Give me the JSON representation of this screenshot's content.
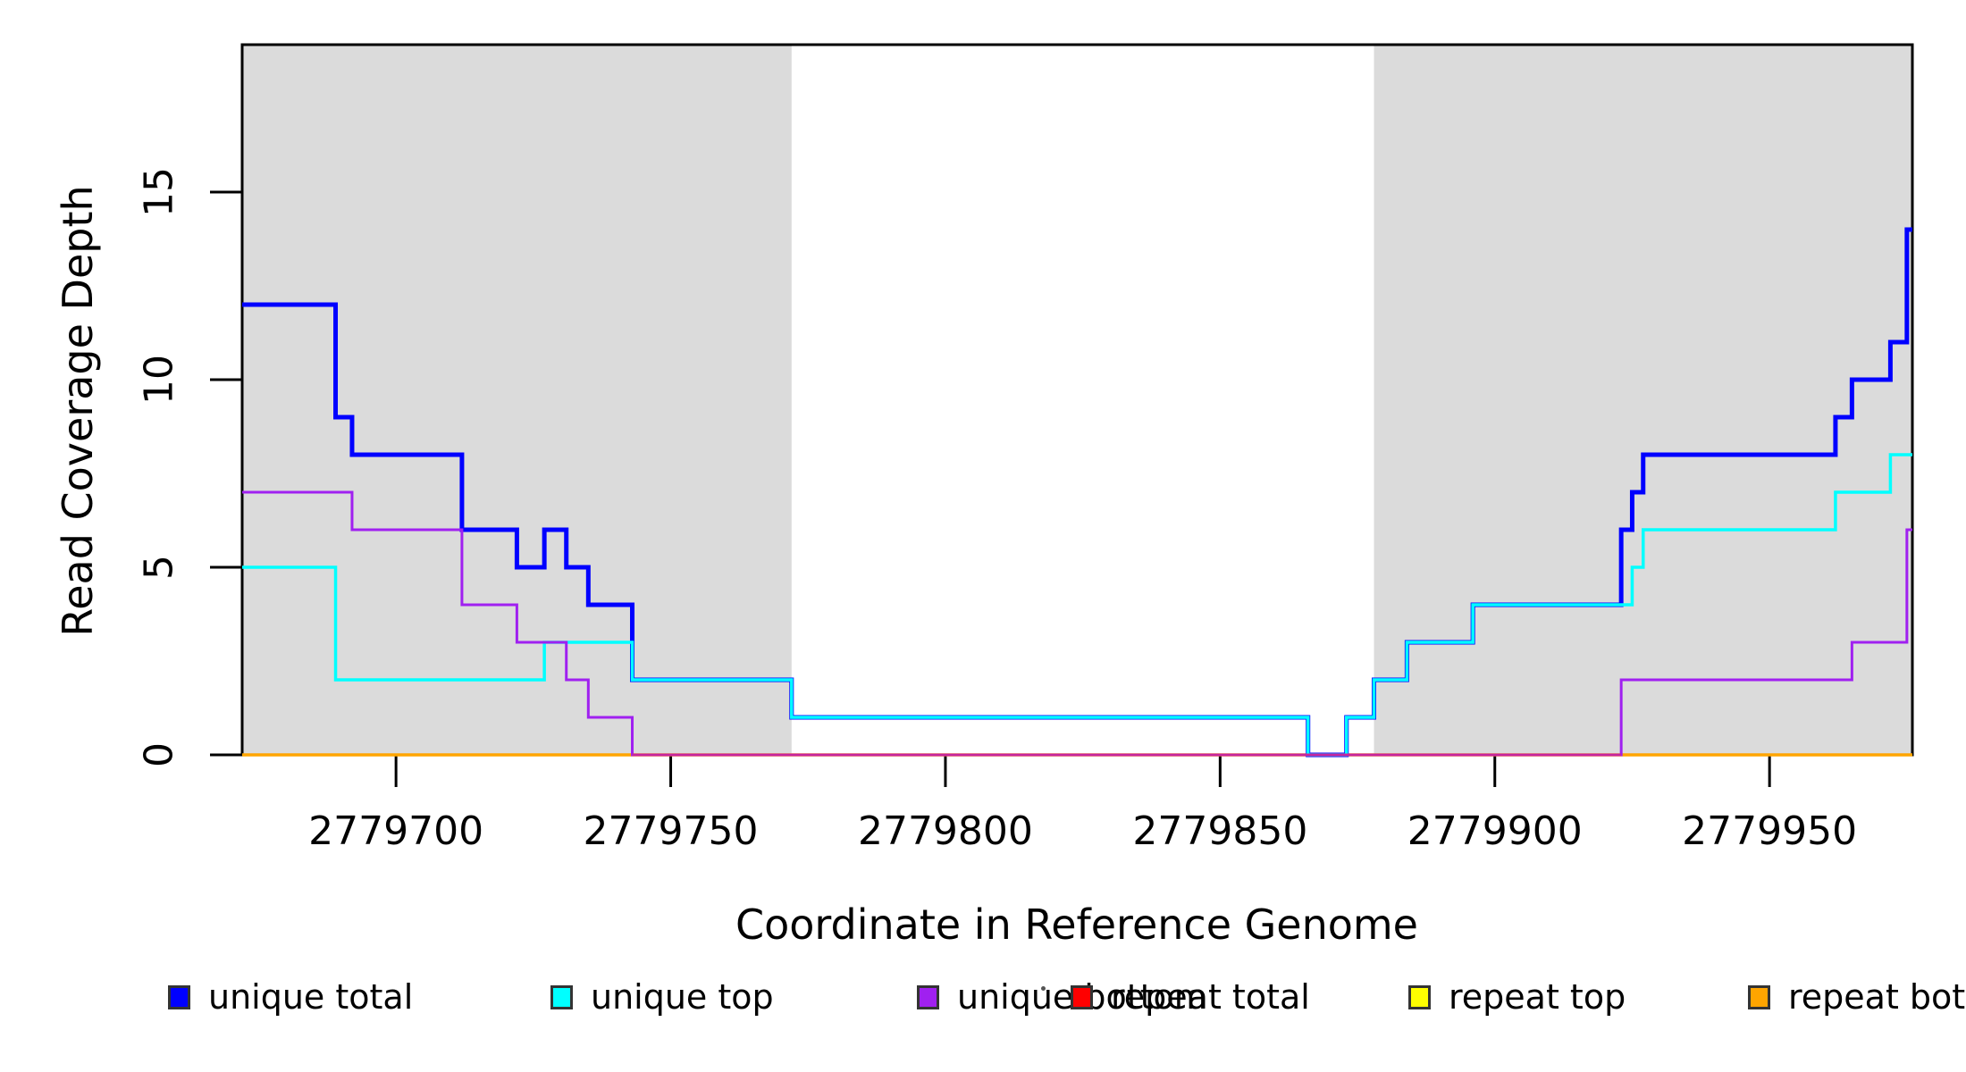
{
  "figure": {
    "background": "#ffffff",
    "plot_background": "#ffffff"
  },
  "chart_data": {
    "type": "line",
    "subtype": "step-coverage-plot",
    "title": "",
    "xlabel": "Coordinate in Reference Genome",
    "ylabel": "Read Coverage Depth",
    "xlim": [
      2779672,
      2779976
    ],
    "ylim": [
      0,
      18.93
    ],
    "x_ticks": [
      2779700,
      2779750,
      2779800,
      2779850,
      2779900,
      2779950
    ],
    "y_ticks": [
      0,
      5,
      10,
      15
    ],
    "grid": false,
    "legend_position": "bottom-horizontal",
    "shaded_region_color": "#DBDBDB",
    "shaded_regions": [
      {
        "x1": 2779672,
        "x2": 2779772
      },
      {
        "x1": 2779878,
        "x2": 2779976
      }
    ],
    "series": [
      {
        "name": "repeat total",
        "color": "#FF0000",
        "line_width": 3,
        "start_value": 0,
        "steps": []
      },
      {
        "name": "repeat top",
        "color": "#FFFF00",
        "line_width": 3,
        "start_value": 0,
        "steps": []
      },
      {
        "name": "repeat bottom",
        "color": "#FFA500",
        "line_width": 3.5,
        "start_value": 0,
        "steps": []
      },
      {
        "name": "unique total",
        "color": "#0000FF",
        "line_width": 5,
        "start_value": 12,
        "steps": [
          [
            2779689,
            9
          ],
          [
            2779692,
            8
          ],
          [
            2779712,
            6
          ],
          [
            2779722,
            5
          ],
          [
            2779727,
            6
          ],
          [
            2779731,
            5
          ],
          [
            2779735,
            4
          ],
          [
            2779743,
            2
          ],
          [
            2779772,
            1
          ],
          [
            2779866,
            0
          ],
          [
            2779873,
            1
          ],
          [
            2779878,
            2
          ],
          [
            2779884,
            3
          ],
          [
            2779896,
            4
          ],
          [
            2779923,
            6
          ],
          [
            2779925,
            7
          ],
          [
            2779927,
            8
          ],
          [
            2779962,
            9
          ],
          [
            2779965,
            10
          ],
          [
            2779972,
            11
          ],
          [
            2779975,
            14
          ]
        ]
      },
      {
        "name": "unique top",
        "color": "#00FFFF",
        "line_width": 3.5,
        "start_value": 5,
        "steps": [
          [
            2779689,
            2
          ],
          [
            2779727,
            3
          ],
          [
            2779743,
            2
          ],
          [
            2779772,
            1
          ],
          [
            2779866,
            0
          ],
          [
            2779873,
            1
          ],
          [
            2779878,
            2
          ],
          [
            2779884,
            3
          ],
          [
            2779896,
            4
          ],
          [
            2779925,
            5
          ],
          [
            2779927,
            6
          ],
          [
            2779962,
            7
          ],
          [
            2779972,
            8
          ]
        ]
      },
      {
        "name": "unique bottom",
        "color": "#A020F0",
        "line_width": 3,
        "start_value": 7,
        "steps": [
          [
            2779692,
            6
          ],
          [
            2779712,
            4
          ],
          [
            2779722,
            3
          ],
          [
            2779731,
            2
          ],
          [
            2779735,
            1
          ],
          [
            2779743,
            0
          ],
          [
            2779923,
            2
          ],
          [
            2779965,
            3
          ],
          [
            2779975,
            6
          ]
        ]
      }
    ],
    "baseline_overlays": [
      {
        "x1": 2779743,
        "x2": 2779923,
        "value": 0,
        "color": "#C7259E",
        "line_width": 3
      }
    ]
  },
  "legend": {
    "items": [
      {
        "label": "unique total",
        "color": "#0000FF"
      },
      {
        "label": "unique top",
        "color": "#00FFFF"
      },
      {
        "label": "unique bottom",
        "color": "#A020F0"
      },
      {
        "label": "repeat total",
        "color": "#FF0000"
      },
      {
        "label": "repeat top",
        "color": "#FFFF00"
      },
      {
        "label": "repeat bottom",
        "color": "#FFA500"
      }
    ]
  }
}
